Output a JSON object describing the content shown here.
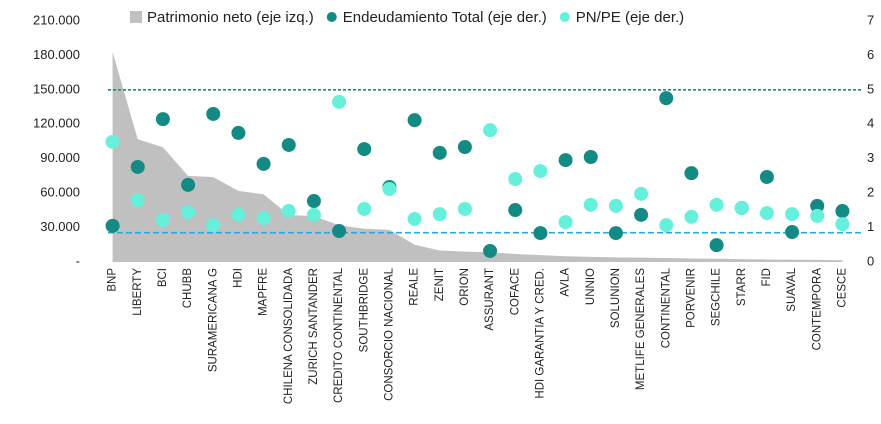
{
  "chart_data": {
    "type": "area_scatter",
    "categories": [
      "BNP",
      "LIBERTY",
      "BCI",
      "CHUBB",
      "SURAMERICANA G",
      "HDI",
      "MAPFRE",
      "CHILENA CONSOLIDADA",
      "ZURICH SANTANDER",
      "CREDITO CONTINENTAL",
      "SOUTHBRIDGE",
      "CONSORCIO NACIONAL",
      "REALE",
      "ZENIT",
      "ORION",
      "ASSURANT",
      "COFACE",
      "HDI GARANTIA Y CRED.",
      "AVLA",
      "UNNIO",
      "SOLUNION",
      "METLIFE GENERALES",
      "CONTINENTAL",
      "PORVENIR",
      "SEGCHILE",
      "STARR",
      "FID",
      "SUAVAL",
      "CONTEMPORA",
      "CESCE"
    ],
    "series": [
      {
        "name": "Patrimonio neto (eje izq.)",
        "color": "#c0c0c0",
        "kind": "area",
        "axis": "y",
        "values": [
          183000,
          107000,
          100000,
          75000,
          74000,
          62000,
          59000,
          41000,
          40000,
          32000,
          29000,
          28000,
          15000,
          10000,
          9000,
          8500,
          7000,
          6000,
          5000,
          4500,
          4000,
          3800,
          3500,
          3000,
          2800,
          2500,
          2200,
          2000,
          1800,
          1500
        ]
      },
      {
        "name": "Endeudamiento Total (eje der.)",
        "color": "#138a84",
        "kind": "scatter",
        "axis": "y2",
        "values": [
          1.05,
          2.76,
          4.15,
          2.24,
          4.3,
          3.75,
          2.85,
          3.4,
          1.77,
          0.9,
          3.28,
          2.18,
          4.12,
          3.17,
          3.34,
          0.32,
          1.51,
          0.84,
          2.96,
          3.05,
          0.84,
          1.37,
          4.76,
          2.58,
          0.49,
          1.57,
          2.47,
          0.87,
          1.63,
          1.48
        ]
      },
      {
        "name": "PN/PE (eje der.)",
        "color": "#66f0dc",
        "kind": "scatter",
        "axis": "y2",
        "values": [
          3.49,
          1.8,
          1.22,
          1.45,
          1.07,
          1.37,
          1.28,
          1.48,
          1.37,
          4.65,
          1.54,
          2.12,
          1.25,
          1.39,
          1.54,
          3.83,
          2.41,
          2.64,
          1.16,
          1.66,
          1.63,
          1.98,
          1.07,
          1.31,
          1.66,
          1.57,
          1.42,
          1.39,
          1.34,
          1.1
        ]
      }
    ],
    "ylim": [
      0,
      210000
    ],
    "yticks": [
      {
        "value": 0,
        "label": "-"
      },
      {
        "value": 30000,
        "label": "30.000"
      },
      {
        "value": 60000,
        "label": "60.000"
      },
      {
        "value": 90000,
        "label": "90.000"
      },
      {
        "value": 120000,
        "label": "120.000"
      },
      {
        "value": 150000,
        "label": "150.000"
      },
      {
        "value": 180000,
        "label": "180.000"
      },
      {
        "value": 210000,
        "label": "210.000"
      }
    ],
    "y2lim": [
      0,
      7
    ],
    "y2ticks": [
      0,
      1,
      2,
      3,
      4,
      5,
      6,
      7
    ],
    "reference_lines": [
      {
        "value": 5,
        "axis": "y2",
        "color": "#138a84"
      },
      {
        "value": 0.85,
        "axis": "y2",
        "color": "#29a8e0"
      }
    ]
  }
}
